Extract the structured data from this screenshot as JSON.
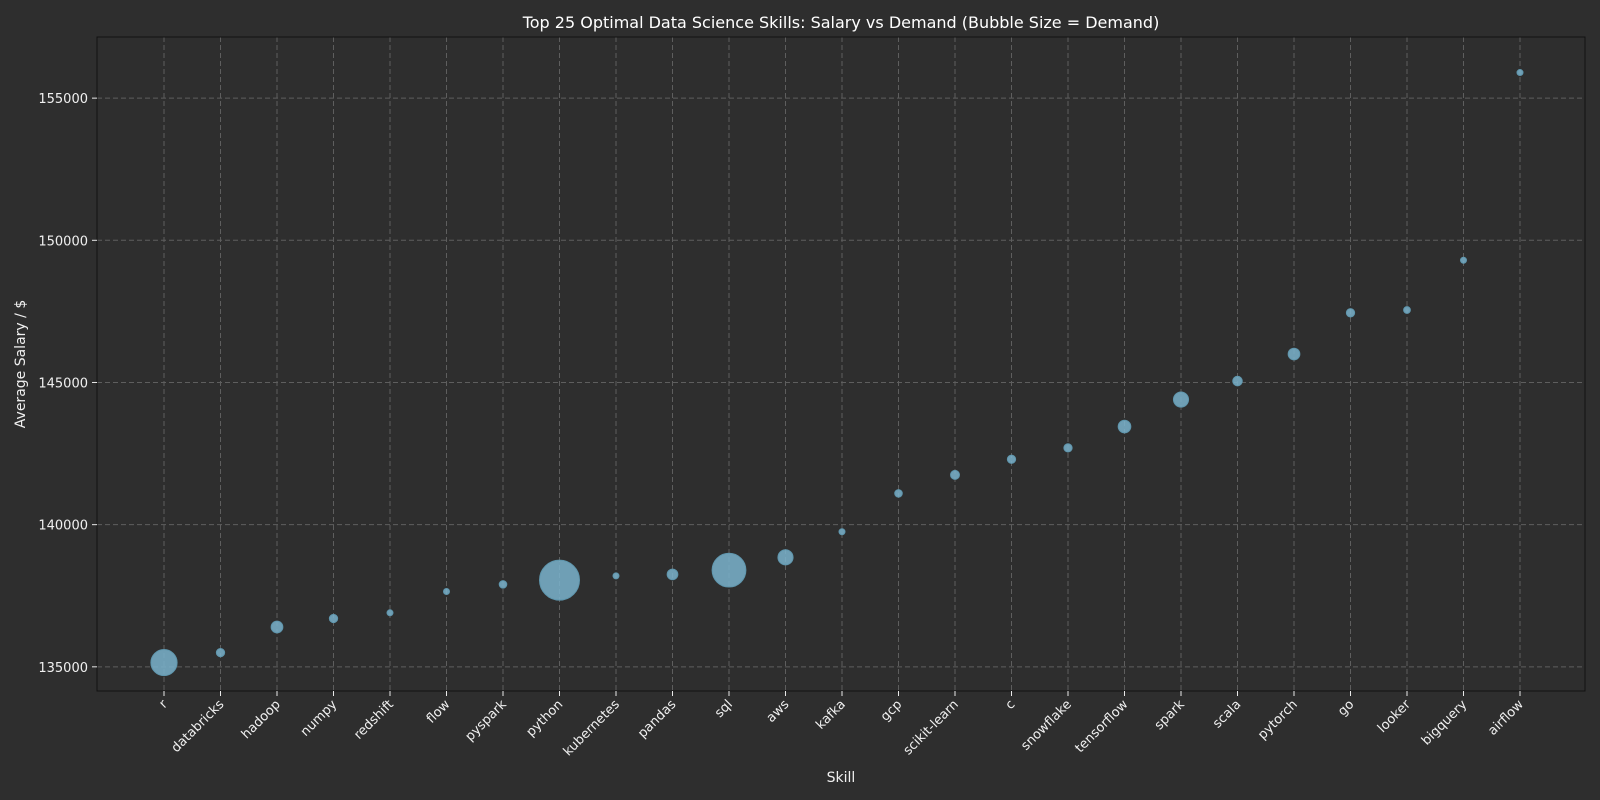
{
  "chart_data": {
    "type": "scatter",
    "title": "Top 25 Optimal Data Science Skills: Salary vs Demand (Bubble Size = Demand)",
    "xlabel": "Skill",
    "ylabel": "Average Salary / $",
    "ylim": [
      134150,
      157150
    ],
    "yticks": [
      135000,
      140000,
      145000,
      150000,
      155000
    ],
    "grid": true,
    "colors": {
      "background": "#2e2e2e",
      "bubble": "#7ab3cc",
      "grid": "#5e5e5e",
      "text": "#f0f0f0"
    },
    "size_encoding": "demand",
    "points": [
      {
        "skill": "r",
        "salary": 135150,
        "demand": 60
      },
      {
        "skill": "databricks",
        "salary": 135500,
        "demand": 6
      },
      {
        "skill": "hadoop",
        "salary": 136400,
        "demand": 12
      },
      {
        "skill": "numpy",
        "salary": 136700,
        "demand": 6
      },
      {
        "skill": "redshift",
        "salary": 136900,
        "demand": 2
      },
      {
        "skill": "flow",
        "salary": 137650,
        "demand": 3
      },
      {
        "skill": "pyspark",
        "salary": 137900,
        "demand": 5
      },
      {
        "skill": "python",
        "salary": 138050,
        "demand": 140
      },
      {
        "skill": "kubernetes",
        "salary": 138200,
        "demand": 3
      },
      {
        "skill": "pandas",
        "salary": 138250,
        "demand": 10
      },
      {
        "skill": "sql",
        "salary": 138400,
        "demand": 100
      },
      {
        "skill": "aws",
        "salary": 138850,
        "demand": 20
      },
      {
        "skill": "kafka",
        "salary": 139750,
        "demand": 2
      },
      {
        "skill": "gcp",
        "salary": 141100,
        "demand": 5
      },
      {
        "skill": "scikit-learn",
        "salary": 141750,
        "demand": 7
      },
      {
        "skill": "c",
        "salary": 142300,
        "demand": 6
      },
      {
        "skill": "snowflake",
        "salary": 142700,
        "demand": 6
      },
      {
        "skill": "tensorflow",
        "salary": 143450,
        "demand": 14
      },
      {
        "skill": "spark",
        "salary": 144400,
        "demand": 20
      },
      {
        "skill": "scala",
        "salary": 145050,
        "demand": 8
      },
      {
        "skill": "pytorch",
        "salary": 146000,
        "demand": 12
      },
      {
        "skill": "go",
        "salary": 147450,
        "demand": 6
      },
      {
        "skill": "looker",
        "salary": 147550,
        "demand": 4
      },
      {
        "skill": "bigquery",
        "salary": 149300,
        "demand": 2
      },
      {
        "skill": "airflow",
        "salary": 155900,
        "demand": 2
      }
    ]
  }
}
